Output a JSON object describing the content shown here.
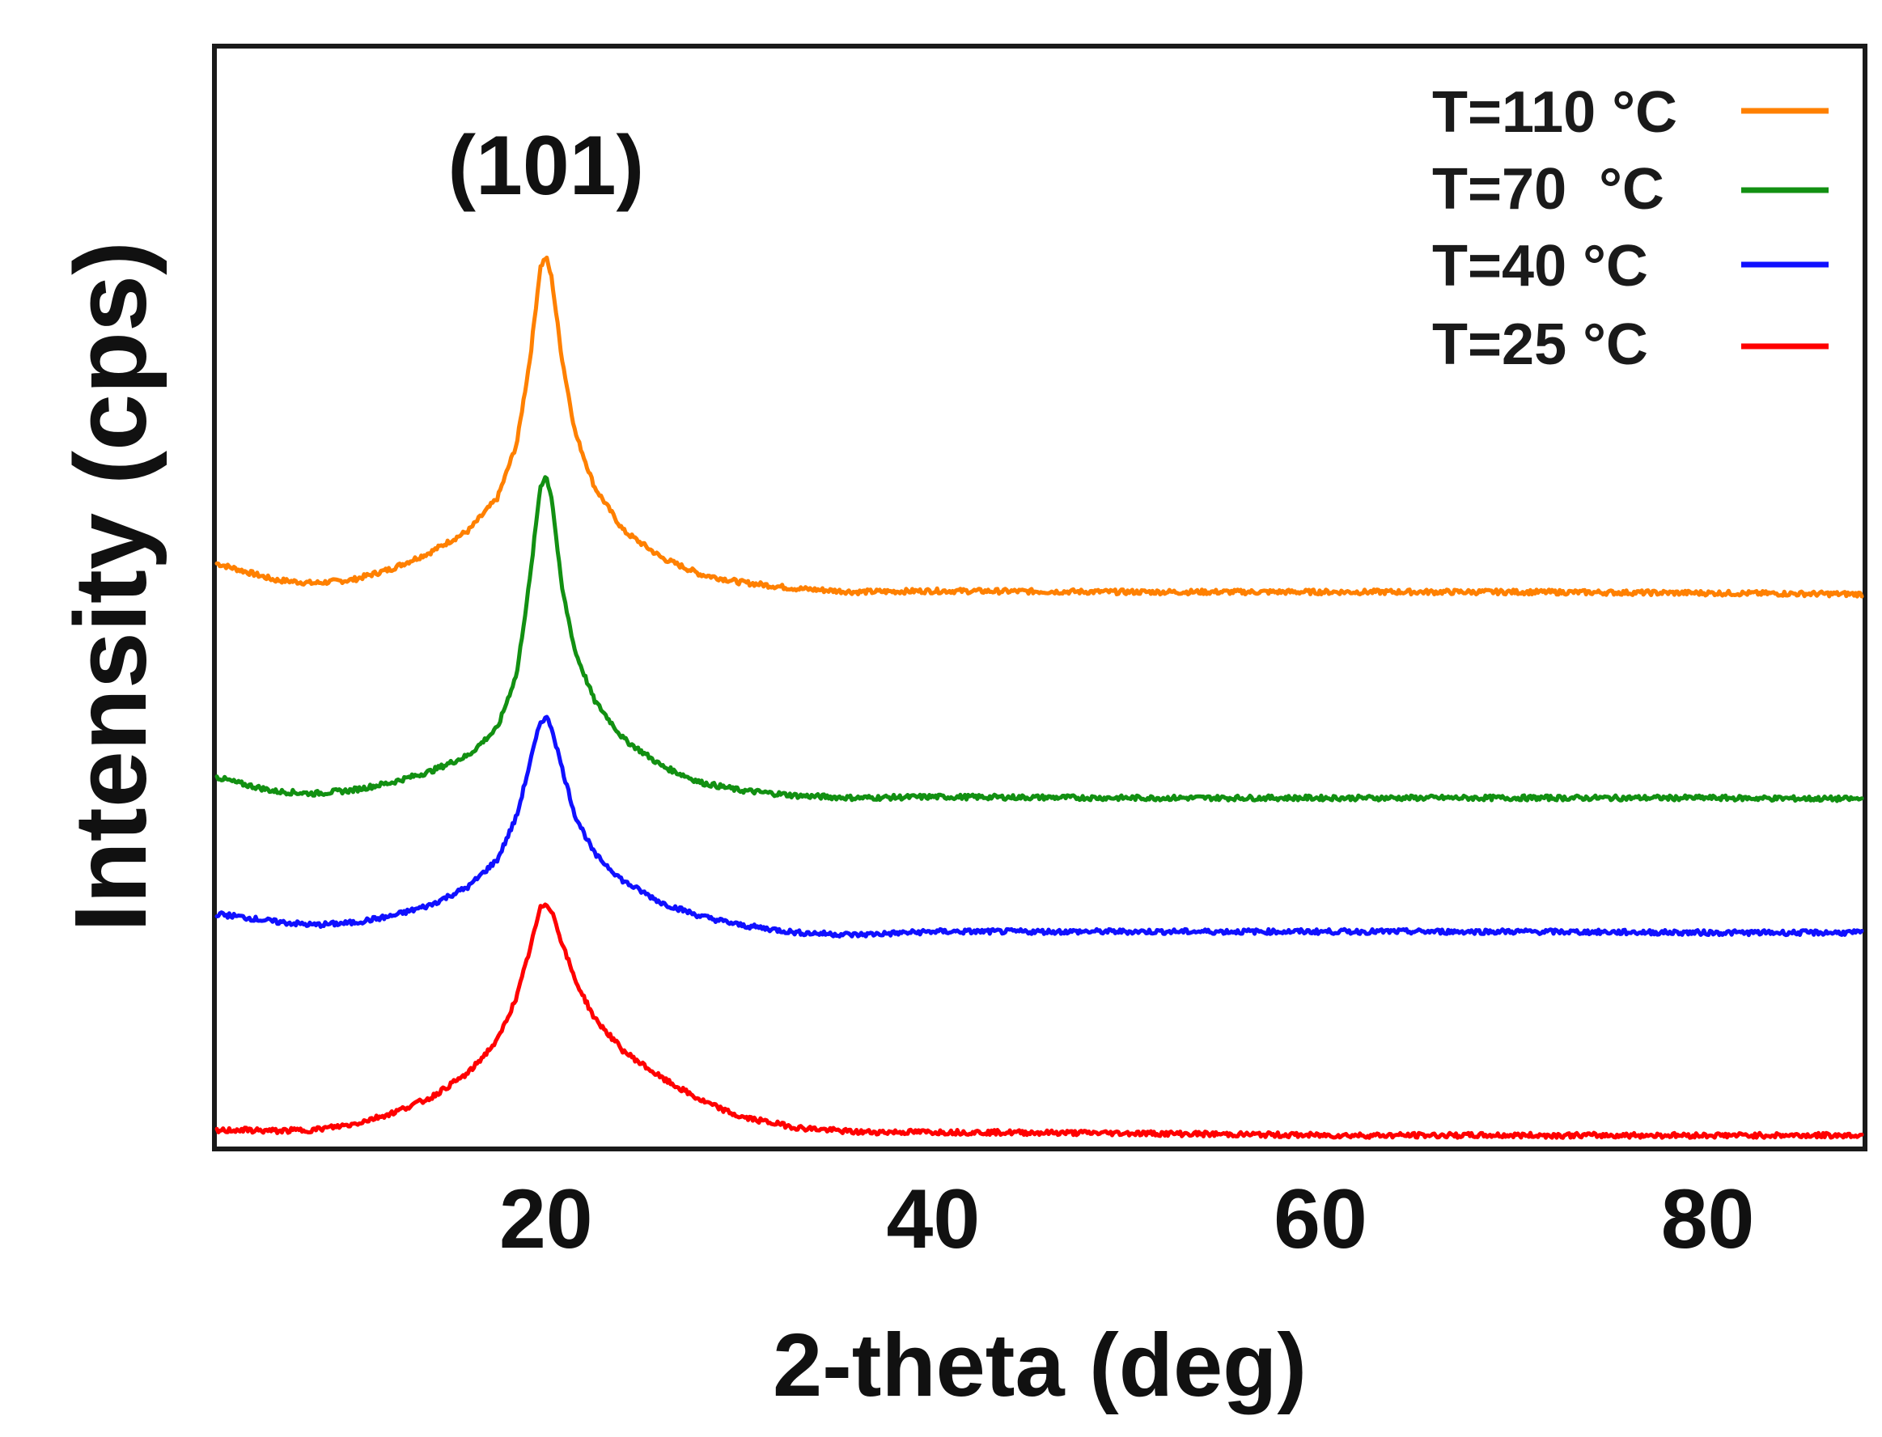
{
  "chart_data": {
    "type": "line",
    "title": "",
    "annotation": "(101)",
    "annotation_x": 20,
    "xlabel": "2-theta (deg)",
    "ylabel": "Intensity (cps)",
    "xlim": [
      3,
      88
    ],
    "ylim": [
      0,
      100
    ],
    "x_ticks": [
      20,
      40,
      60,
      80
    ],
    "x_tick_labels": [
      "20",
      "40",
      "60",
      "80"
    ],
    "y_ticks_shown": false,
    "grid": false,
    "legend_position": "top-right",
    "peak_center": 20,
    "series": [
      {
        "name": "T=110 °C",
        "color": "#FF8000",
        "baseline": 51,
        "points": [
          [
            3,
            53
          ],
          [
            4,
            52.5
          ],
          [
            6,
            51.5
          ],
          [
            8,
            51.2
          ],
          [
            10,
            51.5
          ],
          [
            12,
            52.5
          ],
          [
            14,
            54
          ],
          [
            16,
            56
          ],
          [
            17.5,
            59
          ],
          [
            18.5,
            64
          ],
          [
            19.2,
            72
          ],
          [
            19.7,
            80
          ],
          [
            20,
            81
          ],
          [
            20.3,
            79
          ],
          [
            20.8,
            72
          ],
          [
            21.5,
            65
          ],
          [
            22.5,
            60
          ],
          [
            24,
            56
          ],
          [
            26,
            53.5
          ],
          [
            28,
            52
          ],
          [
            30,
            51.3
          ],
          [
            33,
            50.7
          ],
          [
            36,
            50.4
          ],
          [
            40,
            50.5
          ],
          [
            50,
            50.4
          ],
          [
            60,
            50.4
          ],
          [
            70,
            50.4
          ],
          [
            80,
            50.3
          ],
          [
            88,
            50.2
          ]
        ]
      },
      {
        "name": "T=70  °C",
        "color": "#129012",
        "baseline": 32,
        "points": [
          [
            3,
            33.5
          ],
          [
            4,
            33
          ],
          [
            6,
            32.2
          ],
          [
            8,
            32
          ],
          [
            10,
            32.3
          ],
          [
            12,
            33
          ],
          [
            14,
            34
          ],
          [
            16,
            35.5
          ],
          [
            17.5,
            38
          ],
          [
            18.5,
            43
          ],
          [
            19.2,
            52
          ],
          [
            19.7,
            60
          ],
          [
            20,
            61
          ],
          [
            20.3,
            59
          ],
          [
            20.8,
            51
          ],
          [
            21.5,
            45
          ],
          [
            22.5,
            40.5
          ],
          [
            24,
            37
          ],
          [
            26,
            34.5
          ],
          [
            28,
            33
          ],
          [
            30,
            32.3
          ],
          [
            33,
            31.8
          ],
          [
            36,
            31.6
          ],
          [
            40,
            31.7
          ],
          [
            50,
            31.6
          ],
          [
            60,
            31.6
          ],
          [
            70,
            31.6
          ],
          [
            80,
            31.6
          ],
          [
            88,
            31.5
          ]
        ]
      },
      {
        "name": "T=40 °C",
        "color": "#1010FF",
        "baseline": 20,
        "points": [
          [
            3,
            21
          ],
          [
            4,
            20.8
          ],
          [
            6,
            20.3
          ],
          [
            8,
            20
          ],
          [
            10,
            20.2
          ],
          [
            12,
            20.8
          ],
          [
            14,
            21.8
          ],
          [
            16,
            23.5
          ],
          [
            17.5,
            26
          ],
          [
            18.5,
            30
          ],
          [
            19.2,
            35
          ],
          [
            19.7,
            38.5
          ],
          [
            20,
            39
          ],
          [
            20.3,
            38
          ],
          [
            20.8,
            34.5
          ],
          [
            21.5,
            30
          ],
          [
            22.5,
            26.5
          ],
          [
            24,
            24
          ],
          [
            26,
            22
          ],
          [
            28,
            20.8
          ],
          [
            30,
            20
          ],
          [
            33,
            19.3
          ],
          [
            36,
            19.1
          ],
          [
            40,
            19.4
          ],
          [
            50,
            19.4
          ],
          [
            60,
            19.4
          ],
          [
            70,
            19.4
          ],
          [
            80,
            19.3
          ],
          [
            88,
            19.3
          ]
        ]
      },
      {
        "name": "T=25 °C",
        "color": "#FF0000",
        "baseline": 1,
        "points": [
          [
            3,
            1.2
          ],
          [
            4,
            1.3
          ],
          [
            6,
            1.2
          ],
          [
            8,
            1.3
          ],
          [
            10,
            1.8
          ],
          [
            12,
            2.8
          ],
          [
            14,
            4.2
          ],
          [
            16,
            6.5
          ],
          [
            17.5,
            9.5
          ],
          [
            18.5,
            13.5
          ],
          [
            19.2,
            18
          ],
          [
            19.7,
            21.5
          ],
          [
            20,
            22
          ],
          [
            20.3,
            21.3
          ],
          [
            20.8,
            18.5
          ],
          [
            21.5,
            15
          ],
          [
            22.5,
            11.5
          ],
          [
            24,
            8.5
          ],
          [
            26,
            6
          ],
          [
            28,
            4
          ],
          [
            30,
            2.5
          ],
          [
            33,
            1.5
          ],
          [
            36,
            1.1
          ],
          [
            40,
            1.1
          ],
          [
            50,
            1
          ],
          [
            60,
            0.8
          ],
          [
            70,
            0.8
          ],
          [
            80,
            0.8
          ],
          [
            88,
            0.8
          ]
        ]
      }
    ]
  },
  "colors": {
    "frame": "#1a1a1a",
    "text": "#111111"
  }
}
